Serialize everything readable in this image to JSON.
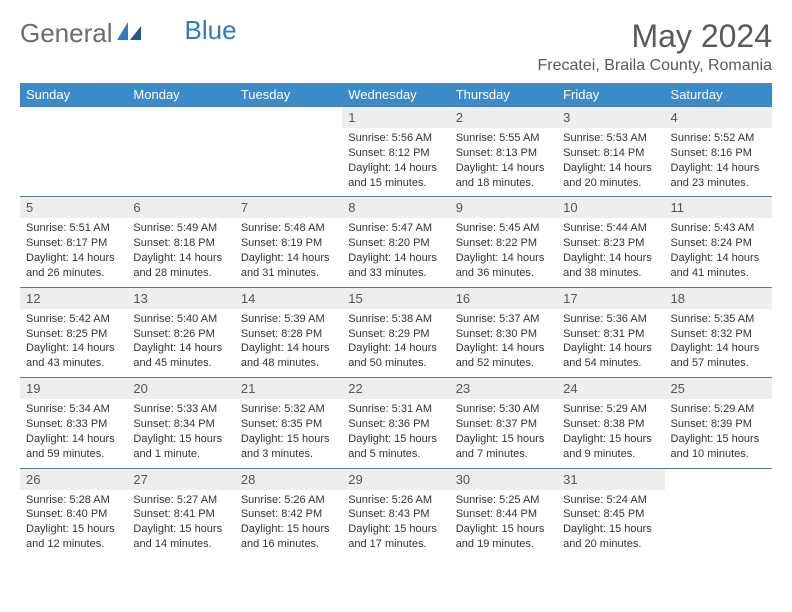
{
  "brand": {
    "part1": "General",
    "part2": "Blue"
  },
  "title": "May 2024",
  "location": "Frecatei, Braila County, Romania",
  "colors": {
    "header_bg": "#3a8bc9",
    "header_text": "#ffffff",
    "daynum_bg": "#eeeeee",
    "border": "#5a7a9a",
    "logo_gray": "#6b6b6b",
    "logo_blue": "#2f7bbf"
  },
  "weekdays": [
    "Sunday",
    "Monday",
    "Tuesday",
    "Wednesday",
    "Thursday",
    "Friday",
    "Saturday"
  ],
  "weeks": [
    [
      null,
      null,
      null,
      {
        "n": "1",
        "sr": "5:56 AM",
        "ss": "8:12 PM",
        "dl": "14 hours and 15 minutes."
      },
      {
        "n": "2",
        "sr": "5:55 AM",
        "ss": "8:13 PM",
        "dl": "14 hours and 18 minutes."
      },
      {
        "n": "3",
        "sr": "5:53 AM",
        "ss": "8:14 PM",
        "dl": "14 hours and 20 minutes."
      },
      {
        "n": "4",
        "sr": "5:52 AM",
        "ss": "8:16 PM",
        "dl": "14 hours and 23 minutes."
      }
    ],
    [
      {
        "n": "5",
        "sr": "5:51 AM",
        "ss": "8:17 PM",
        "dl": "14 hours and 26 minutes."
      },
      {
        "n": "6",
        "sr": "5:49 AM",
        "ss": "8:18 PM",
        "dl": "14 hours and 28 minutes."
      },
      {
        "n": "7",
        "sr": "5:48 AM",
        "ss": "8:19 PM",
        "dl": "14 hours and 31 minutes."
      },
      {
        "n": "8",
        "sr": "5:47 AM",
        "ss": "8:20 PM",
        "dl": "14 hours and 33 minutes."
      },
      {
        "n": "9",
        "sr": "5:45 AM",
        "ss": "8:22 PM",
        "dl": "14 hours and 36 minutes."
      },
      {
        "n": "10",
        "sr": "5:44 AM",
        "ss": "8:23 PM",
        "dl": "14 hours and 38 minutes."
      },
      {
        "n": "11",
        "sr": "5:43 AM",
        "ss": "8:24 PM",
        "dl": "14 hours and 41 minutes."
      }
    ],
    [
      {
        "n": "12",
        "sr": "5:42 AM",
        "ss": "8:25 PM",
        "dl": "14 hours and 43 minutes."
      },
      {
        "n": "13",
        "sr": "5:40 AM",
        "ss": "8:26 PM",
        "dl": "14 hours and 45 minutes."
      },
      {
        "n": "14",
        "sr": "5:39 AM",
        "ss": "8:28 PM",
        "dl": "14 hours and 48 minutes."
      },
      {
        "n": "15",
        "sr": "5:38 AM",
        "ss": "8:29 PM",
        "dl": "14 hours and 50 minutes."
      },
      {
        "n": "16",
        "sr": "5:37 AM",
        "ss": "8:30 PM",
        "dl": "14 hours and 52 minutes."
      },
      {
        "n": "17",
        "sr": "5:36 AM",
        "ss": "8:31 PM",
        "dl": "14 hours and 54 minutes."
      },
      {
        "n": "18",
        "sr": "5:35 AM",
        "ss": "8:32 PM",
        "dl": "14 hours and 57 minutes."
      }
    ],
    [
      {
        "n": "19",
        "sr": "5:34 AM",
        "ss": "8:33 PM",
        "dl": "14 hours and 59 minutes."
      },
      {
        "n": "20",
        "sr": "5:33 AM",
        "ss": "8:34 PM",
        "dl": "15 hours and 1 minute."
      },
      {
        "n": "21",
        "sr": "5:32 AM",
        "ss": "8:35 PM",
        "dl": "15 hours and 3 minutes."
      },
      {
        "n": "22",
        "sr": "5:31 AM",
        "ss": "8:36 PM",
        "dl": "15 hours and 5 minutes."
      },
      {
        "n": "23",
        "sr": "5:30 AM",
        "ss": "8:37 PM",
        "dl": "15 hours and 7 minutes."
      },
      {
        "n": "24",
        "sr": "5:29 AM",
        "ss": "8:38 PM",
        "dl": "15 hours and 9 minutes."
      },
      {
        "n": "25",
        "sr": "5:29 AM",
        "ss": "8:39 PM",
        "dl": "15 hours and 10 minutes."
      }
    ],
    [
      {
        "n": "26",
        "sr": "5:28 AM",
        "ss": "8:40 PM",
        "dl": "15 hours and 12 minutes."
      },
      {
        "n": "27",
        "sr": "5:27 AM",
        "ss": "8:41 PM",
        "dl": "15 hours and 14 minutes."
      },
      {
        "n": "28",
        "sr": "5:26 AM",
        "ss": "8:42 PM",
        "dl": "15 hours and 16 minutes."
      },
      {
        "n": "29",
        "sr": "5:26 AM",
        "ss": "8:43 PM",
        "dl": "15 hours and 17 minutes."
      },
      {
        "n": "30",
        "sr": "5:25 AM",
        "ss": "8:44 PM",
        "dl": "15 hours and 19 minutes."
      },
      {
        "n": "31",
        "sr": "5:24 AM",
        "ss": "8:45 PM",
        "dl": "15 hours and 20 minutes."
      },
      null
    ]
  ]
}
